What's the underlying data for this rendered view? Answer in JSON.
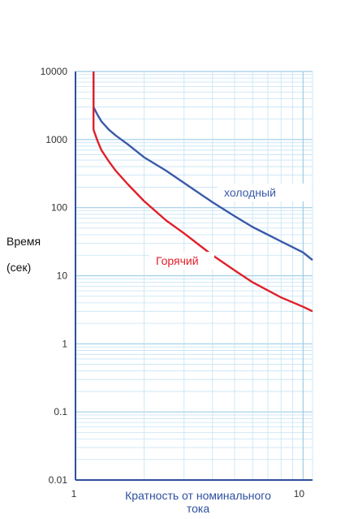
{
  "chart_data": {
    "type": "line",
    "title": "",
    "xscale": "log",
    "yscale": "log",
    "xlim": [
      1,
      11
    ],
    "ylim": [
      0.01,
      10000
    ],
    "grid": true,
    "x_ticks": [
      {
        "value": 1,
        "label": "1"
      },
      {
        "value": 10,
        "label": "10"
      }
    ],
    "y_ticks": [
      {
        "value": 10000,
        "label": "10000"
      },
      {
        "value": 1000,
        "label": "1000"
      },
      {
        "value": 100,
        "label": "100"
      },
      {
        "value": 10,
        "label": "10"
      },
      {
        "value": 1,
        "label": "1"
      },
      {
        "value": 0.1,
        "label": "0.1"
      },
      {
        "value": 0.01,
        "label": "0.01"
      }
    ],
    "xlabel_lines": [
      "Кратность от номинального",
      "тока"
    ],
    "ylabel_lines": [
      "Время",
      "(сек)"
    ],
    "series": [
      {
        "name": "холодный",
        "color": "#3a5aa8",
        "x": [
          1.2,
          1.2,
          1.25,
          1.3,
          1.4,
          1.5,
          1.7,
          2,
          2.5,
          3,
          4,
          5,
          6,
          8,
          10,
          11
        ],
        "y": [
          10000,
          3000,
          2300,
          1850,
          1400,
          1150,
          850,
          550,
          350,
          230,
          120,
          75,
          52,
          32,
          22,
          17
        ]
      },
      {
        "name": "Горячий",
        "color": "#e0202a",
        "x": [
          1.2,
          1.2,
          1.25,
          1.3,
          1.4,
          1.5,
          1.7,
          2,
          2.5,
          3,
          4,
          5,
          6,
          8,
          10,
          11
        ],
        "y": [
          10000,
          1400,
          950,
          700,
          480,
          350,
          220,
          125,
          65,
          42,
          20,
          12,
          8,
          4.8,
          3.5,
          3
        ]
      }
    ]
  }
}
